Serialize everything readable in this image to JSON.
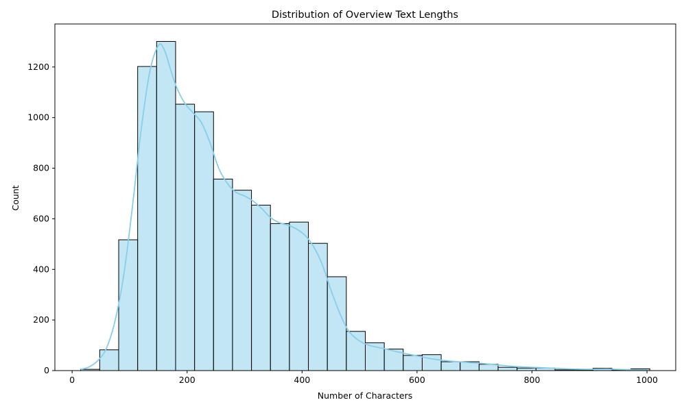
{
  "chart_data": {
    "type": "bar",
    "subtype": "histogram",
    "title": "Distribution of Overview Text Lengths",
    "xlabel": "Number of Characters",
    "ylabel": "Count",
    "xlim": [
      -30,
      1050
    ],
    "ylim": [
      0,
      1370
    ],
    "x_ticks": [
      0,
      200,
      400,
      600,
      800,
      1000
    ],
    "y_ticks": [
      0,
      200,
      400,
      600,
      800,
      1000,
      1200
    ],
    "grid": false,
    "bin_width": 33,
    "bin_start": 15,
    "bins": [
      {
        "x0": 15,
        "x1": 48,
        "count": 5
      },
      {
        "x0": 48,
        "x1": 81,
        "count": 82
      },
      {
        "x0": 81,
        "x1": 114,
        "count": 517
      },
      {
        "x0": 114,
        "x1": 147,
        "count": 1202
      },
      {
        "x0": 147,
        "x1": 180,
        "count": 1301
      },
      {
        "x0": 180,
        "x1": 213,
        "count": 1053
      },
      {
        "x0": 213,
        "x1": 246,
        "count": 1023
      },
      {
        "x0": 246,
        "x1": 279,
        "count": 757
      },
      {
        "x0": 279,
        "x1": 312,
        "count": 713
      },
      {
        "x0": 312,
        "x1": 345,
        "count": 654
      },
      {
        "x0": 345,
        "x1": 378,
        "count": 581
      },
      {
        "x0": 378,
        "x1": 411,
        "count": 587
      },
      {
        "x0": 411,
        "x1": 444,
        "count": 503
      },
      {
        "x0": 444,
        "x1": 477,
        "count": 371
      },
      {
        "x0": 477,
        "x1": 510,
        "count": 155
      },
      {
        "x0": 510,
        "x1": 543,
        "count": 110
      },
      {
        "x0": 543,
        "x1": 576,
        "count": 85
      },
      {
        "x0": 576,
        "x1": 609,
        "count": 60
      },
      {
        "x0": 609,
        "x1": 642,
        "count": 63
      },
      {
        "x0": 642,
        "x1": 675,
        "count": 35
      },
      {
        "x0": 675,
        "x1": 708,
        "count": 35
      },
      {
        "x0": 708,
        "x1": 741,
        "count": 25
      },
      {
        "x0": 741,
        "x1": 774,
        "count": 13
      },
      {
        "x0": 774,
        "x1": 807,
        "count": 10
      },
      {
        "x0": 807,
        "x1": 840,
        "count": 10
      },
      {
        "x0": 840,
        "x1": 873,
        "count": 3
      },
      {
        "x0": 873,
        "x1": 906,
        "count": 3
      },
      {
        "x0": 906,
        "x1": 939,
        "count": 9
      },
      {
        "x0": 939,
        "x1": 972,
        "count": 3
      },
      {
        "x0": 972,
        "x1": 1005,
        "count": 7
      }
    ],
    "kde": {
      "x": [
        15,
        30,
        45,
        60,
        75,
        90,
        105,
        120,
        135,
        150,
        160,
        170,
        180,
        195,
        210,
        225,
        240,
        255,
        270,
        285,
        300,
        315,
        330,
        345,
        360,
        375,
        390,
        405,
        420,
        435,
        450,
        465,
        480,
        495,
        510,
        525,
        540,
        555,
        570,
        585,
        600,
        630,
        660,
        690,
        720,
        750,
        780,
        810,
        840,
        870,
        900,
        930,
        960,
        1000
      ],
      "y": [
        5,
        15,
        40,
        90,
        200,
        380,
        650,
        950,
        1180,
        1285,
        1270,
        1200,
        1130,
        1060,
        1020,
        980,
        900,
        800,
        740,
        705,
        690,
        670,
        640,
        605,
        585,
        575,
        560,
        535,
        490,
        420,
        320,
        230,
        160,
        125,
        105,
        95,
        88,
        80,
        72,
        65,
        58,
        45,
        37,
        32,
        27,
        20,
        15,
        12,
        9,
        6,
        5,
        6,
        4,
        2
      ]
    },
    "colors": {
      "bar_fill": "#87ceeb",
      "bar_fill_opacity": 0.5,
      "bar_edge": "#000000",
      "kde_line": "#87ceeb"
    }
  }
}
